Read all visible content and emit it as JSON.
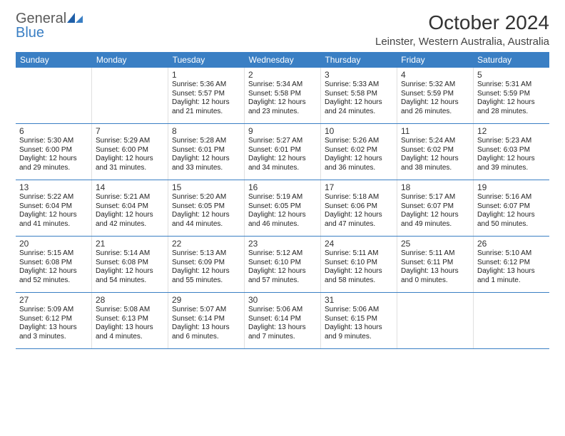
{
  "logo": {
    "line1": "General",
    "line2": "Blue"
  },
  "title": "October 2024",
  "location": "Leinster, Western Australia, Australia",
  "colors": {
    "header_bg": "#3a7fc4",
    "header_text": "#ffffff",
    "text": "#222222",
    "border": "#3a7fc4",
    "cell_border": "#e0e0e0",
    "logo_gray": "#5a5a5a",
    "logo_blue": "#3a7fc4"
  },
  "day_names": [
    "Sunday",
    "Monday",
    "Tuesday",
    "Wednesday",
    "Thursday",
    "Friday",
    "Saturday"
  ],
  "weeks": [
    [
      null,
      null,
      {
        "n": "1",
        "sr": "5:36 AM",
        "ss": "5:57 PM",
        "dl": "12 hours and 21 minutes."
      },
      {
        "n": "2",
        "sr": "5:34 AM",
        "ss": "5:58 PM",
        "dl": "12 hours and 23 minutes."
      },
      {
        "n": "3",
        "sr": "5:33 AM",
        "ss": "5:58 PM",
        "dl": "12 hours and 24 minutes."
      },
      {
        "n": "4",
        "sr": "5:32 AM",
        "ss": "5:59 PM",
        "dl": "12 hours and 26 minutes."
      },
      {
        "n": "5",
        "sr": "5:31 AM",
        "ss": "5:59 PM",
        "dl": "12 hours and 28 minutes."
      }
    ],
    [
      {
        "n": "6",
        "sr": "5:30 AM",
        "ss": "6:00 PM",
        "dl": "12 hours and 29 minutes."
      },
      {
        "n": "7",
        "sr": "5:29 AM",
        "ss": "6:00 PM",
        "dl": "12 hours and 31 minutes."
      },
      {
        "n": "8",
        "sr": "5:28 AM",
        "ss": "6:01 PM",
        "dl": "12 hours and 33 minutes."
      },
      {
        "n": "9",
        "sr": "5:27 AM",
        "ss": "6:01 PM",
        "dl": "12 hours and 34 minutes."
      },
      {
        "n": "10",
        "sr": "5:26 AM",
        "ss": "6:02 PM",
        "dl": "12 hours and 36 minutes."
      },
      {
        "n": "11",
        "sr": "5:24 AM",
        "ss": "6:02 PM",
        "dl": "12 hours and 38 minutes."
      },
      {
        "n": "12",
        "sr": "5:23 AM",
        "ss": "6:03 PM",
        "dl": "12 hours and 39 minutes."
      }
    ],
    [
      {
        "n": "13",
        "sr": "5:22 AM",
        "ss": "6:04 PM",
        "dl": "12 hours and 41 minutes."
      },
      {
        "n": "14",
        "sr": "5:21 AM",
        "ss": "6:04 PM",
        "dl": "12 hours and 42 minutes."
      },
      {
        "n": "15",
        "sr": "5:20 AM",
        "ss": "6:05 PM",
        "dl": "12 hours and 44 minutes."
      },
      {
        "n": "16",
        "sr": "5:19 AM",
        "ss": "6:05 PM",
        "dl": "12 hours and 46 minutes."
      },
      {
        "n": "17",
        "sr": "5:18 AM",
        "ss": "6:06 PM",
        "dl": "12 hours and 47 minutes."
      },
      {
        "n": "18",
        "sr": "5:17 AM",
        "ss": "6:07 PM",
        "dl": "12 hours and 49 minutes."
      },
      {
        "n": "19",
        "sr": "5:16 AM",
        "ss": "6:07 PM",
        "dl": "12 hours and 50 minutes."
      }
    ],
    [
      {
        "n": "20",
        "sr": "5:15 AM",
        "ss": "6:08 PM",
        "dl": "12 hours and 52 minutes."
      },
      {
        "n": "21",
        "sr": "5:14 AM",
        "ss": "6:08 PM",
        "dl": "12 hours and 54 minutes."
      },
      {
        "n": "22",
        "sr": "5:13 AM",
        "ss": "6:09 PM",
        "dl": "12 hours and 55 minutes."
      },
      {
        "n": "23",
        "sr": "5:12 AM",
        "ss": "6:10 PM",
        "dl": "12 hours and 57 minutes."
      },
      {
        "n": "24",
        "sr": "5:11 AM",
        "ss": "6:10 PM",
        "dl": "12 hours and 58 minutes."
      },
      {
        "n": "25",
        "sr": "5:11 AM",
        "ss": "6:11 PM",
        "dl": "13 hours and 0 minutes."
      },
      {
        "n": "26",
        "sr": "5:10 AM",
        "ss": "6:12 PM",
        "dl": "13 hours and 1 minute."
      }
    ],
    [
      {
        "n": "27",
        "sr": "5:09 AM",
        "ss": "6:12 PM",
        "dl": "13 hours and 3 minutes."
      },
      {
        "n": "28",
        "sr": "5:08 AM",
        "ss": "6:13 PM",
        "dl": "13 hours and 4 minutes."
      },
      {
        "n": "29",
        "sr": "5:07 AM",
        "ss": "6:14 PM",
        "dl": "13 hours and 6 minutes."
      },
      {
        "n": "30",
        "sr": "5:06 AM",
        "ss": "6:14 PM",
        "dl": "13 hours and 7 minutes."
      },
      {
        "n": "31",
        "sr": "5:06 AM",
        "ss": "6:15 PM",
        "dl": "13 hours and 9 minutes."
      },
      null,
      null
    ]
  ],
  "labels": {
    "sunrise": "Sunrise:",
    "sunset": "Sunset:",
    "daylight": "Daylight:"
  }
}
